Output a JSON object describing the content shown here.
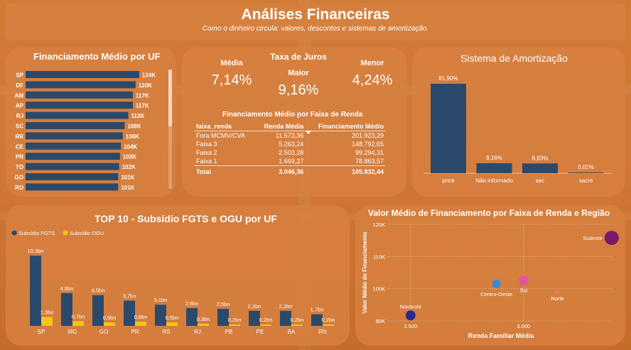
{
  "header": {
    "title": "Análises Financeiras",
    "subtitle": "Como o dinheiro circula: valores, descontos e sistemas de amortização."
  },
  "colors": {
    "navy": "#2b4a6b",
    "yellow": "#f5c518",
    "panel": "#d68040"
  },
  "kpis": {
    "title": "Taxa de Juros",
    "media_label": "Média",
    "media_value": "7,14%",
    "maior_label": "Maior",
    "maior_value": "9,16%",
    "menor_label": "Menor",
    "menor_value": "4,24%"
  },
  "faixa_table": {
    "title": "Financiamento Médio por Faixa de Renda",
    "columns": [
      "faixa_renda",
      "Renda Média",
      "Financiamento Médio"
    ],
    "rows": [
      [
        "Fora MCMV/CVA",
        "11.573,36",
        "201.923,29"
      ],
      [
        "Faixa 3",
        "5.263,24",
        "148.792,65"
      ],
      [
        "Faixa 2",
        "2.503,28",
        "99.294,31"
      ],
      [
        "Faixa 1",
        "1.669,27",
        "78.863,57"
      ]
    ],
    "total": [
      "Total",
      "3.046,36",
      "105.832,44"
    ]
  },
  "chart_data": [
    {
      "id": "uf",
      "type": "bar",
      "orientation": "horizontal",
      "title": "Financiamento Médio por UF",
      "categories": [
        "SP",
        "DF",
        "AM",
        "AP",
        "RJ",
        "SC",
        "RR",
        "CE",
        "PR",
        "TO",
        "GO",
        "RO"
      ],
      "values": [
        124,
        120,
        117,
        117,
        112,
        108,
        106,
        104,
        103,
        102,
        101,
        101
      ],
      "labels": [
        "124K",
        "120K",
        "117K",
        "117K",
        "112K",
        "108K",
        "106K",
        "104K",
        "103K",
        "102K",
        "101K",
        "101K"
      ],
      "xlim": [
        0,
        124
      ]
    },
    {
      "id": "amort",
      "type": "bar",
      "title": "Sistema de Amortização",
      "categories": [
        "price",
        "Não informado",
        "sac",
        "sacre"
      ],
      "values": [
        81.9,
        9.16,
        8.93,
        0.01
      ],
      "labels": [
        "81,90%",
        "9,16%",
        "8,93%",
        "0,01%"
      ],
      "ylim": [
        0,
        81.9
      ]
    },
    {
      "id": "subsidio",
      "type": "bar",
      "title": "TOP 10 - Subsídio FGTS e OGU por UF",
      "legend": "top-left",
      "categories": [
        "SP",
        "MG",
        "GO",
        "PR",
        "RS",
        "RJ",
        "PB",
        "PE",
        "BA",
        "RN"
      ],
      "series": [
        {
          "name": "Subsídio FGTS",
          "values": [
            10.3,
            4.8,
            4.5,
            3.7,
            3.1,
            2.6,
            2.5,
            2.2,
            2.2,
            1.7
          ],
          "labels": [
            "10,3bn",
            "4,8bn",
            "4,5bn",
            "3,7bn",
            "3,1bn",
            "2,6bn",
            "2,5bn",
            "2,2bn",
            "2,2bn",
            "1,7bn"
          ]
        },
        {
          "name": "Subsídio OGU",
          "values": [
            1.3,
            0.7,
            0.5,
            0.6,
            0.5,
            0.3,
            0.2,
            0.2,
            0.2,
            0.2
          ],
          "labels": [
            "1,3bn",
            "0,7bn",
            "0,5bn",
            "0,6bn",
            "0,5bn",
            "0,3bn",
            "0,2bn",
            "0,2bn",
            "0,2bn",
            "0,2bn"
          ]
        }
      ],
      "ylim": [
        0,
        10.3
      ]
    },
    {
      "id": "regiao",
      "type": "scatter",
      "title": "Valor Médio de Financiamento por Faixa de Renda e Região",
      "xlabel": "Renda Familiar Média",
      "ylabel": "Valor Médio de Financiamento",
      "xlim": [
        2400,
        3400
      ],
      "ylim": [
        90000,
        120000
      ],
      "xticks": [
        2500,
        3000
      ],
      "xtick_labels": [
        "2.500",
        "3.000"
      ],
      "yticks": [
        90000,
        100000,
        110000,
        120000
      ],
      "ytick_labels": [
        "90K",
        "100K",
        "110K",
        "120K"
      ],
      "grid": true,
      "points": [
        {
          "name": "Nordeste",
          "x": 2500,
          "y": 91700,
          "color": "#2a2a8a",
          "r": 7
        },
        {
          "name": "Centro-Oeste",
          "x": 2880,
          "y": 101500,
          "color": "#3a86d8",
          "r": 6
        },
        {
          "name": "Sul",
          "x": 3000,
          "y": 102500,
          "color": "#e0559a",
          "r": 7
        },
        {
          "name": "Norte",
          "x": 3150,
          "y": 99000,
          "color": "#e0804a",
          "r": 4
        },
        {
          "name": "Sudeste",
          "x": 3390,
          "y": 115800,
          "color": "#7a1a6a",
          "r": 10
        }
      ]
    }
  ]
}
